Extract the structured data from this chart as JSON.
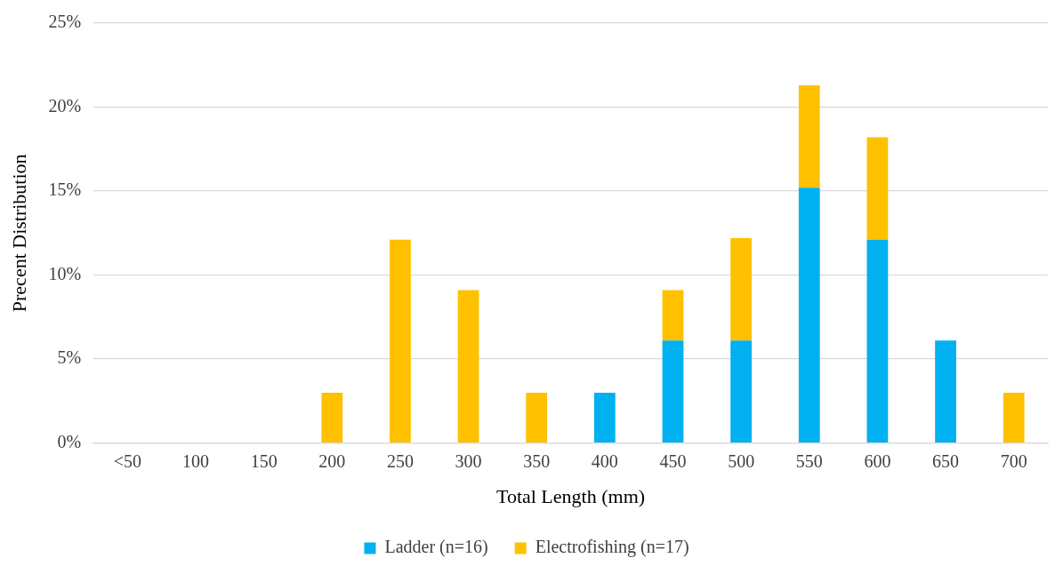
{
  "chart_data": {
    "type": "bar",
    "stacked": true,
    "xlabel": "Total Length (mm)",
    "ylabel": "Precent Distribution",
    "categories": [
      "<50",
      "100",
      "150",
      "200",
      "250",
      "300",
      "350",
      "400",
      "450",
      "500",
      "550",
      "600",
      "650",
      "700"
    ],
    "series": [
      {
        "name": "Ladder (n=16)",
        "color": "#00b0f0",
        "values": [
          0,
          0,
          0,
          0,
          0,
          0,
          0,
          3.0,
          6.1,
          6.1,
          15.2,
          12.1,
          6.1,
          0
        ]
      },
      {
        "name": "Electrofishing (n=17)",
        "color": "#ffc000",
        "values": [
          0,
          0,
          0,
          3.0,
          12.1,
          9.1,
          3.0,
          0,
          3.0,
          6.1,
          6.1,
          6.1,
          0,
          3.0
        ]
      }
    ],
    "ylim": [
      0,
      25
    ],
    "yticks": [
      {
        "value": 0,
        "label": "0%"
      },
      {
        "value": 5,
        "label": "5%"
      },
      {
        "value": 10,
        "label": "10%"
      },
      {
        "value": 15,
        "label": "15%"
      },
      {
        "value": 20,
        "label": "20%"
      },
      {
        "value": 25,
        "label": "25%"
      }
    ],
    "grid": "y",
    "legend": "bottom"
  }
}
